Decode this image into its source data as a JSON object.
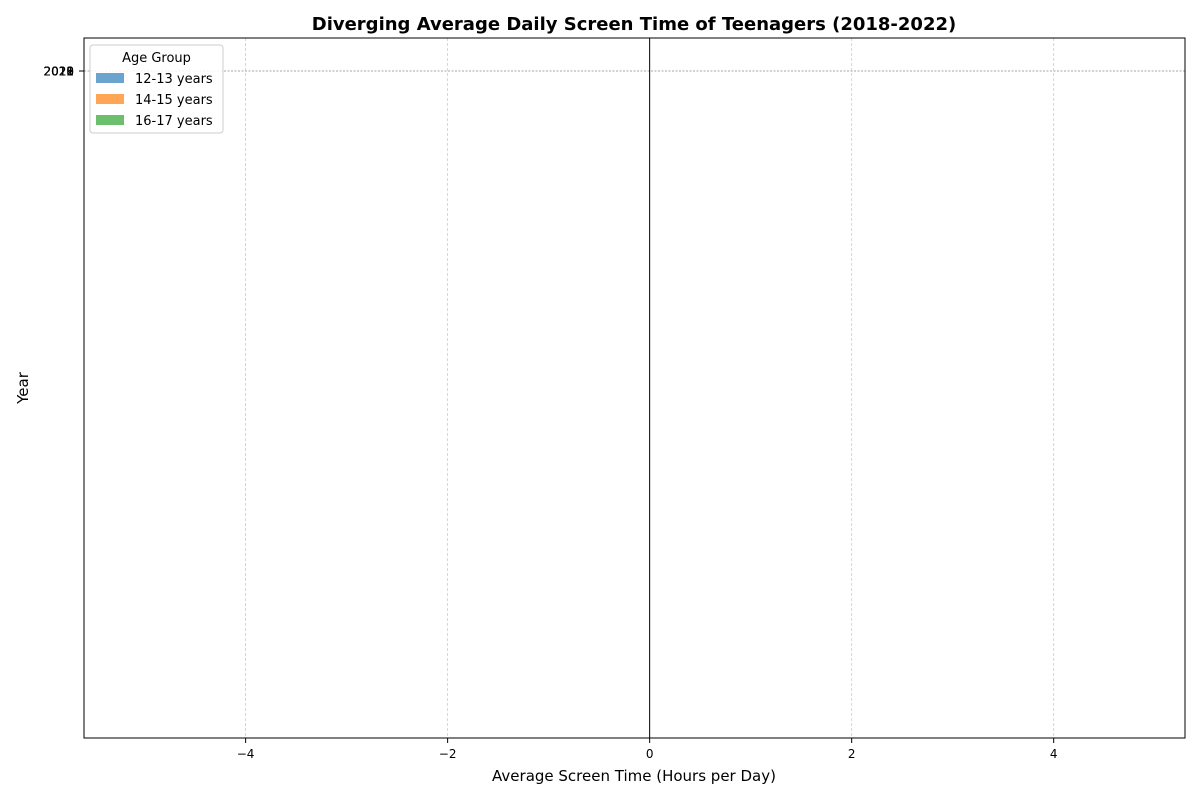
{
  "chart_data": {
    "type": "bar",
    "orientation": "horizontal-diverging",
    "title": "Diverging Average Daily Screen Time of Teenagers (2018-2022)",
    "xlabel": "Average Screen Time (Hours per Day)",
    "ylabel": "Year",
    "xlim": [
      -5.6,
      5.3
    ],
    "xticks": [
      -4,
      -2,
      0,
      2,
      4
    ],
    "xtick_labels": [
      "−4",
      "−2",
      "0",
      "2",
      "4"
    ],
    "ytick_labels": [
      "2018",
      "2019",
      "2020",
      "2021",
      "2022"
    ],
    "grid": "x-dashed",
    "legend": {
      "title": "Age Group",
      "placement": "top-left",
      "entries": [
        {
          "name": "12-13 years",
          "color": "#6aa3cd"
        },
        {
          "name": "14-15 years",
          "color": "#ffa556"
        },
        {
          "name": "16-17 years",
          "color": "#6cbf6c"
        }
      ]
    },
    "series": [
      {
        "name": "12-13 years",
        "values": []
      },
      {
        "name": "14-15 years",
        "values": []
      },
      {
        "name": "16-17 years",
        "values": []
      }
    ]
  }
}
